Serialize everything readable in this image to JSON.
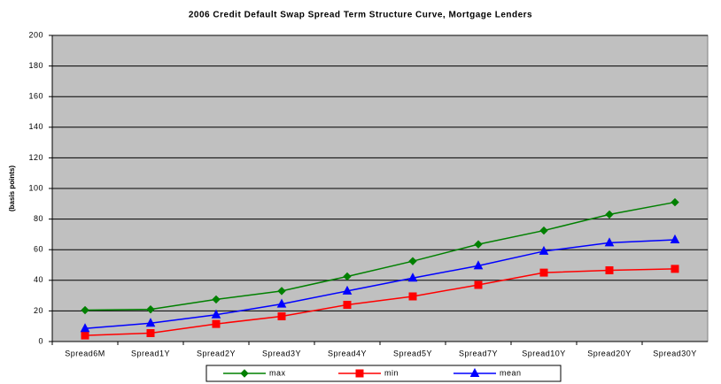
{
  "chart_data": {
    "type": "line",
    "title": "2006 Credit Default Swap Spread Term Structure Curve, Mortgage Lenders",
    "y_label": "(basis points)",
    "categories": [
      "Spread6M",
      "Spread1Y",
      "Spread2Y",
      "Spread3Y",
      "Spread4Y",
      "Spread5Y",
      "Spread7Y",
      "Spread10Y",
      "Spread20Y",
      "Spread30Y"
    ],
    "series": [
      {
        "name": "max",
        "color": "#008000",
        "marker": "diamond",
        "values": [
          20.5,
          21,
          27.5,
          33,
          42.5,
          52.5,
          63.5,
          72.5,
          83,
          91
        ]
      },
      {
        "name": "min",
        "color": "#ff0000",
        "marker": "square",
        "values": [
          4,
          5.5,
          11.5,
          16.5,
          24,
          29.5,
          37,
          45,
          46.5,
          47.5
        ]
      },
      {
        "name": "mean",
        "color": "#0000ff",
        "marker": "triangle",
        "values": [
          8.5,
          12,
          17.5,
          24.5,
          33,
          41.5,
          49.5,
          59,
          64.5,
          66.5
        ]
      }
    ],
    "ylim": [
      0,
      200
    ],
    "yticks": [
      0,
      20,
      40,
      60,
      80,
      100,
      120,
      140,
      160,
      180,
      200
    ],
    "grid": true,
    "legend": "bottom"
  }
}
